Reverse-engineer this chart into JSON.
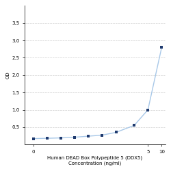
{
  "x_data": [
    0.0156,
    0.0313,
    0.0625,
    0.125,
    0.25,
    0.5,
    1.0,
    2.5,
    5.0,
    10.0
  ],
  "y_data": [
    0.17,
    0.18,
    0.19,
    0.21,
    0.24,
    0.27,
    0.35,
    0.55,
    1.0,
    2.8
  ],
  "line_color": "#a8c8e8",
  "marker_color": "#1f3a6e",
  "xlabel_line1": "Human DEAD Box Polypeptide 5 (DDX5)",
  "xlabel_line2": "Concentration (ng/ml)",
  "ylabel": "OD",
  "xlim_log": [
    -1.9,
    1.1
  ],
  "ylim": [
    0,
    4.0
  ],
  "yticks": [
    0.5,
    1.0,
    1.5,
    2.0,
    2.5,
    3.0,
    3.5
  ],
  "xtick_vals": [
    0.0156,
    5.0,
    10.0
  ],
  "xtick_labels": [
    "0",
    "5",
    "10"
  ],
  "grid_color": "#d0d0d0",
  "bg_color": "#ffffff",
  "label_fontsize": 5,
  "tick_fontsize": 5
}
